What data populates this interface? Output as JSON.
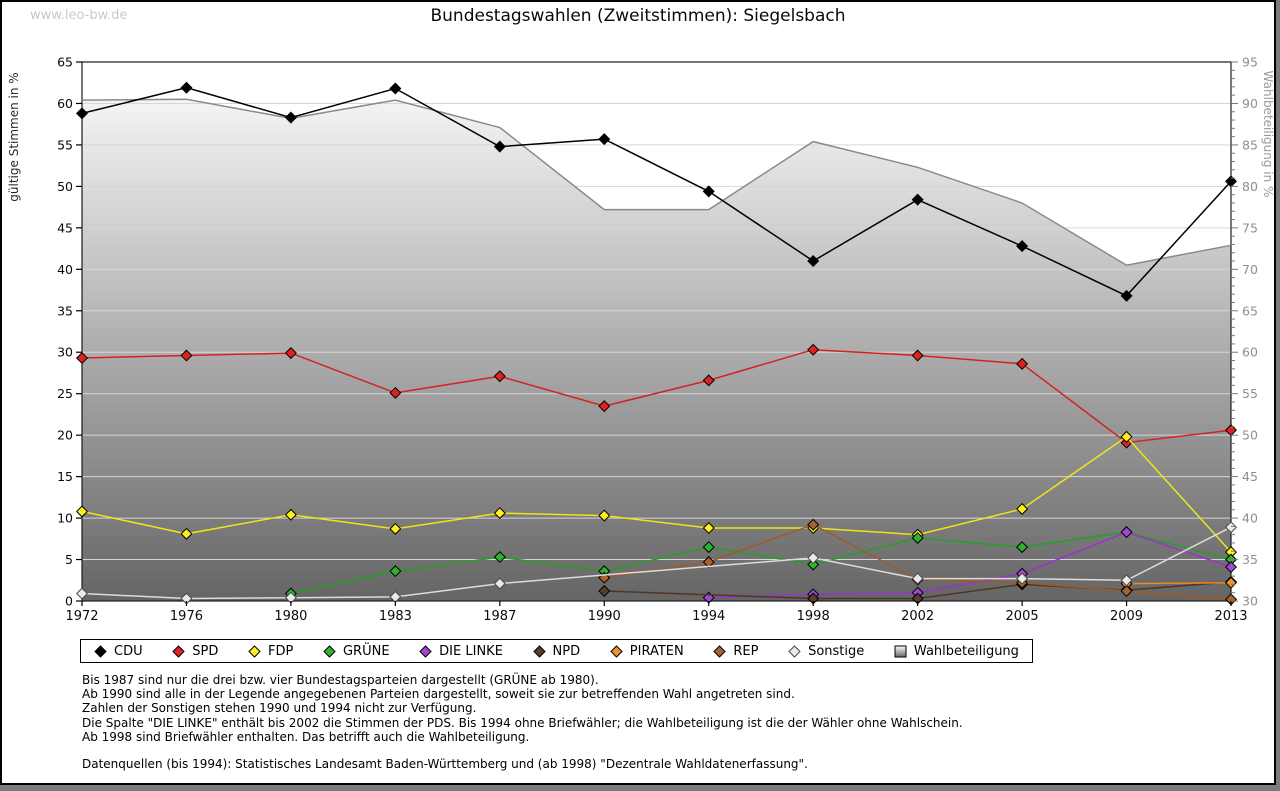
{
  "page": {
    "watermark": "www.leo-bw.de",
    "title": "Bundestagswahlen (Zweitstimmen): Siegelsbach"
  },
  "chart_data": {
    "type": "line",
    "title": "Bundestagswahlen (Zweitstimmen): Siegelsbach",
    "categories": [
      "1972",
      "1976",
      "1980",
      "1983",
      "1987",
      "1990",
      "1994",
      "1998",
      "2002",
      "2005",
      "2009",
      "2013"
    ],
    "left_axis": {
      "label": "gültige Stimmen in %",
      "min": 0,
      "max": 65,
      "step": 5
    },
    "right_axis": {
      "label": "Wahlbeteiligung in %",
      "min": 30,
      "max": 95,
      "step": 5
    },
    "grid": true,
    "legend_position": "bottom",
    "series": [
      {
        "name": "CDU",
        "axis": "left",
        "marker": "diamond",
        "color": "#000000",
        "fill": "#000000",
        "values": [
          58.8,
          61.9,
          58.3,
          61.8,
          54.8,
          55.7,
          49.4,
          41.0,
          48.4,
          42.8,
          36.8,
          50.6
        ]
      },
      {
        "name": "SPD",
        "axis": "left",
        "marker": "diamond",
        "color": "#d42222",
        "fill": "#dd2222",
        "values": [
          29.3,
          29.6,
          29.9,
          25.1,
          27.1,
          23.5,
          26.6,
          30.3,
          29.6,
          28.6,
          19.1,
          20.6
        ]
      },
      {
        "name": "FDP",
        "axis": "left",
        "marker": "diamond",
        "color": "#ece619",
        "fill": "#ffee22",
        "values": [
          10.8,
          8.1,
          10.4,
          8.7,
          10.6,
          10.3,
          8.8,
          8.8,
          8.0,
          11.1,
          19.8,
          5.9
        ]
      },
      {
        "name": "GRÜNE",
        "axis": "left",
        "marker": "diamond",
        "color": "#22a022",
        "fill": "#2db32d",
        "values": [
          null,
          null,
          0.9,
          3.6,
          5.3,
          3.6,
          6.5,
          4.4,
          7.6,
          6.5,
          8.3,
          5.0
        ]
      },
      {
        "name": "DIE LINKE",
        "axis": "left",
        "marker": "diamond",
        "color": "#9933cc",
        "fill": "#a344d4",
        "values": [
          null,
          null,
          null,
          null,
          null,
          null,
          0.4,
          0.8,
          1.0,
          3.3,
          8.3,
          4.1
        ]
      },
      {
        "name": "NPD",
        "axis": "left",
        "marker": "diamond",
        "color": "#4d3626",
        "fill": "#55402c",
        "values": [
          null,
          null,
          null,
          null,
          null,
          1.2,
          null,
          0.3,
          0.3,
          2.0,
          1.3,
          2.3
        ]
      },
      {
        "name": "PIRATEN",
        "axis": "left",
        "marker": "diamond",
        "color": "#ee8822",
        "fill": "#f29030",
        "values": [
          null,
          null,
          null,
          null,
          null,
          null,
          null,
          null,
          null,
          null,
          2.1,
          2.2
        ]
      },
      {
        "name": "REP",
        "axis": "left",
        "marker": "diamond",
        "color": "#a05a28",
        "fill": "#aa6130",
        "values": [
          null,
          null,
          null,
          null,
          null,
          2.8,
          4.7,
          9.2,
          2.6,
          2.2,
          1.2,
          0.2
        ]
      },
      {
        "name": "Sonstige",
        "axis": "left",
        "marker": "diamond",
        "color": "#dcdcdc",
        "fill": "#e9e9e9",
        "values": [
          0.9,
          0.3,
          0.4,
          0.5,
          2.1,
          null,
          null,
          5.2,
          2.7,
          2.7,
          2.5,
          8.9
        ]
      },
      {
        "name": "Wahlbeteiligung",
        "axis": "right",
        "marker": "square",
        "color": "#8a8a8a",
        "type": "area",
        "fill_gradient": [
          "#ffffff",
          "#656565"
        ],
        "values": [
          90.4,
          90.5,
          88.2,
          90.4,
          87.1,
          77.2,
          77.2,
          85.4,
          82.3,
          78.0,
          70.5,
          72.9
        ]
      }
    ]
  },
  "footnotes": [
    "Bis 1987 sind nur die drei bzw. vier Bundestagsparteien dargestellt (GRÜNE ab 1980).",
    "Ab 1990 sind alle in der Legende angegebenen Parteien dargestellt, soweit sie zur betreffenden Wahl angetreten sind.",
    "Zahlen der Sonstigen stehen 1990 und 1994 nicht zur Verfügung.",
    "Die Spalte \"DIE LINKE\" enthält bis 2002 die Stimmen der PDS. Bis 1994 ohne Briefwähler; die Wahlbeteiligung ist die der Wähler ohne Wahlschein.",
    "Ab 1998 sind Briefwähler enthalten. Das betrifft auch die Wahlbeteiligung."
  ],
  "source": "Datenquellen (bis 1994): Statistisches Landesamt Baden-Württemberg und (ab 1998) \"Dezentrale Wahldatenerfassung\"."
}
